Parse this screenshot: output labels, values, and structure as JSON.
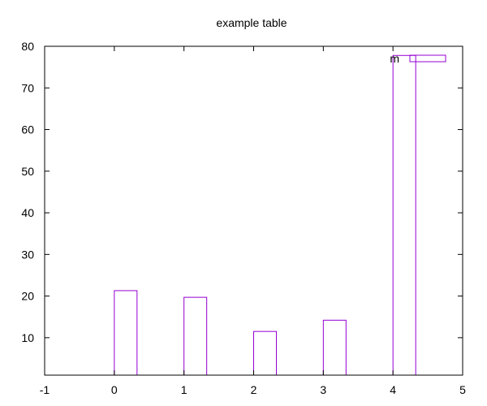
{
  "chart_data": {
    "type": "bar",
    "title": "example table",
    "xlabel": "",
    "ylabel": "",
    "x": [
      0,
      1,
      2,
      3,
      4
    ],
    "series": [
      {
        "name": "m",
        "values": [
          21.3,
          19.7,
          11.5,
          14.2,
          77.8
        ],
        "color": "#9400d3"
      }
    ],
    "xlim": [
      -1,
      5
    ],
    "ylim": [
      1,
      80
    ],
    "xticks": [
      "-1",
      "0",
      "1",
      "2",
      "3",
      "4",
      "5"
    ],
    "yticks": [
      "10",
      "20",
      "30",
      "40",
      "50",
      "60",
      "70",
      "80"
    ],
    "grid": false,
    "legend": "top-right",
    "bar_style": "outline"
  }
}
